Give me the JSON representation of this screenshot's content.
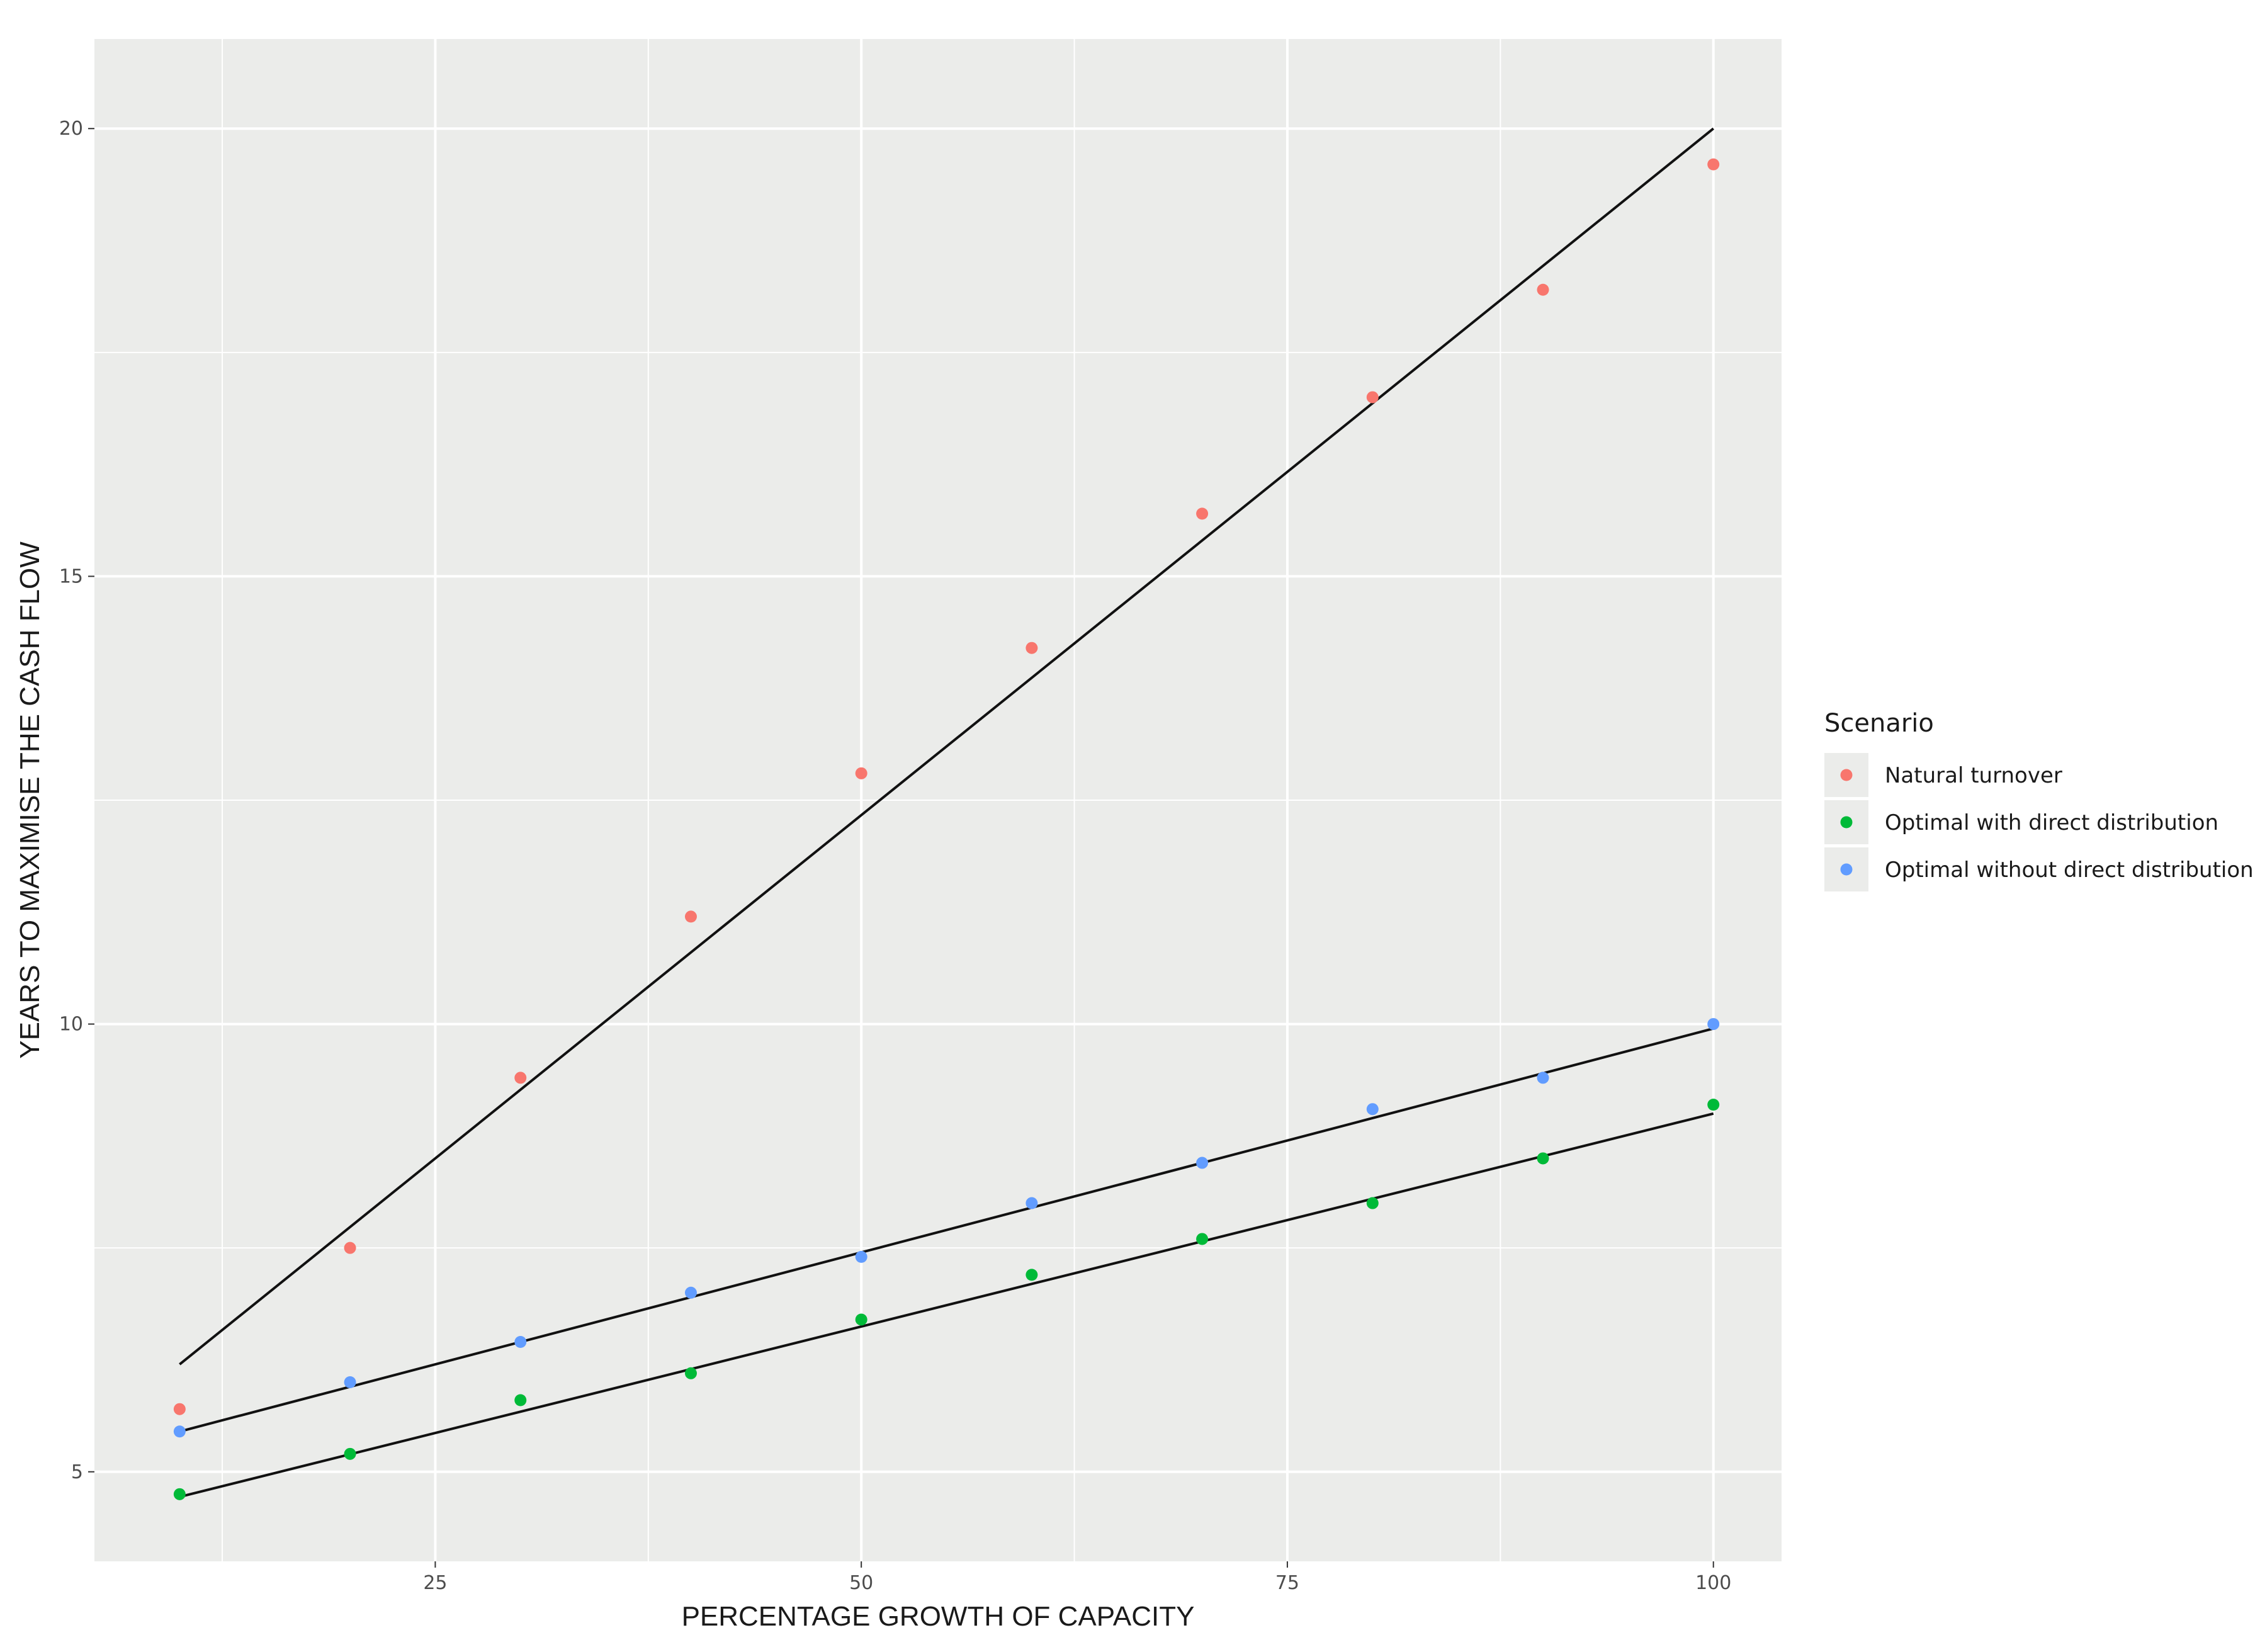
{
  "chart_data": {
    "type": "scatter",
    "xlabel": "PERCENTAGE GROWTH OF CAPACITY",
    "ylabel": "YEARS TO MAXIMISE THE CASH FLOW",
    "xlim": [
      5,
      104
    ],
    "ylim": [
      4,
      21
    ],
    "x_ticks": [
      25,
      50,
      75,
      100
    ],
    "y_ticks": [
      5,
      10,
      15,
      20
    ],
    "grid": true,
    "legend": {
      "title": "Scenario",
      "position": "right"
    },
    "panel_background": "#ebecea",
    "series": [
      {
        "name": "Natural turnover",
        "color": "#f8766d",
        "x": [
          10,
          20,
          30,
          40,
          50,
          60,
          70,
          80,
          90,
          100
        ],
        "y": [
          5.7,
          7.5,
          9.4,
          11.2,
          12.8,
          14.2,
          15.7,
          17.0,
          18.2,
          19.6
        ],
        "fit": {
          "x": [
            10,
            100
          ],
          "y": [
            6.2,
            20.0
          ]
        }
      },
      {
        "name": "Optimal with direct distribution",
        "color": "#00ba38",
        "x": [
          10,
          20,
          30,
          40,
          50,
          60,
          70,
          80,
          90,
          100
        ],
        "y": [
          4.75,
          5.2,
          5.8,
          6.1,
          6.7,
          7.2,
          7.6,
          8.0,
          8.5,
          9.1
        ],
        "fit": {
          "x": [
            10,
            100
          ],
          "y": [
            4.72,
            9.0
          ]
        }
      },
      {
        "name": "Optimal without direct distribution",
        "color": "#619cff",
        "x": [
          10,
          20,
          30,
          40,
          50,
          60,
          70,
          80,
          90,
          100
        ],
        "y": [
          5.45,
          6.0,
          6.45,
          7.0,
          7.4,
          8.0,
          8.45,
          9.05,
          9.4,
          10.0
        ],
        "fit": {
          "x": [
            10,
            100
          ],
          "y": [
            5.45,
            9.95
          ]
        }
      }
    ]
  }
}
